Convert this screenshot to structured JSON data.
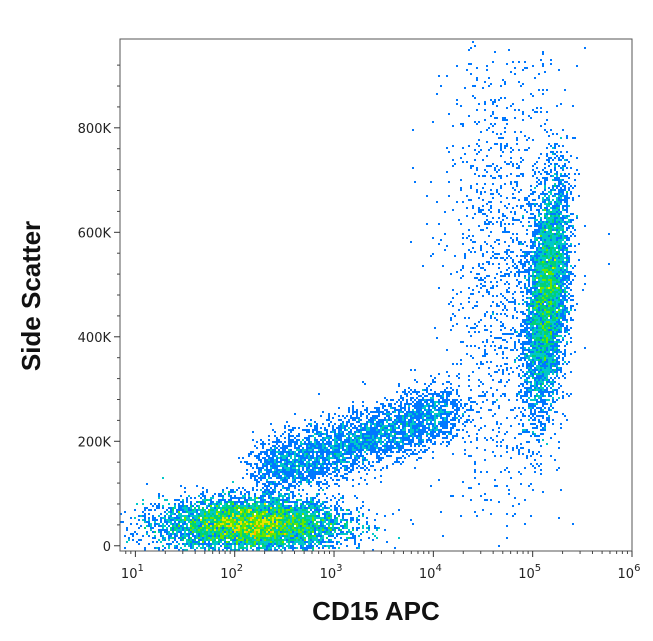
{
  "chart_data": {
    "type": "scatter",
    "style": "flow-cytometry density dot plot",
    "xlabel": "CD15 APC",
    "ylabel": "Side Scatter",
    "x_scale": "log",
    "y_scale": "linear",
    "xlim": [
      7,
      1000000
    ],
    "ylim": [
      -10000,
      970000
    ],
    "x_ticks": [
      {
        "value": 10,
        "base": "10",
        "exp": "1"
      },
      {
        "value": 100,
        "base": "10",
        "exp": "2"
      },
      {
        "value": 1000,
        "base": "10",
        "exp": "3"
      },
      {
        "value": 10000,
        "base": "10",
        "exp": "4"
      },
      {
        "value": 100000,
        "base": "10",
        "exp": "5"
      },
      {
        "value": 1000000,
        "base": "10",
        "exp": "6"
      }
    ],
    "y_ticks": [
      {
        "value": 0,
        "label": "0"
      },
      {
        "value": 200000,
        "label": "200K"
      },
      {
        "value": 400000,
        "label": "400K"
      },
      {
        "value": 600000,
        "label": "600K"
      },
      {
        "value": 800000,
        "label": "800K"
      }
    ],
    "grid": false,
    "density_colors": [
      "#0000ff",
      "#0078ff",
      "#00c8c8",
      "#00d278",
      "#64e600",
      "#e6e600",
      "#ffb400"
    ],
    "populations": [
      {
        "center_x": 150,
        "center_y": 40000,
        "spread_x_log": 0.45,
        "spread_y": 25000,
        "relative_count": 1.0
      },
      {
        "center_x": 140000,
        "center_y": 480000,
        "spread_x_log": 0.1,
        "spread_y": 110000,
        "relative_count": 0.55
      },
      {
        "from_x": 200,
        "from_y": 140000,
        "to_x": 15000,
        "to_y": 260000,
        "relative_count": 0.3
      },
      {
        "center_x": 50000,
        "center_y": 520000,
        "spread_x_log": 0.3,
        "spread_y": 230000,
        "relative_count": 0.1
      }
    ]
  }
}
